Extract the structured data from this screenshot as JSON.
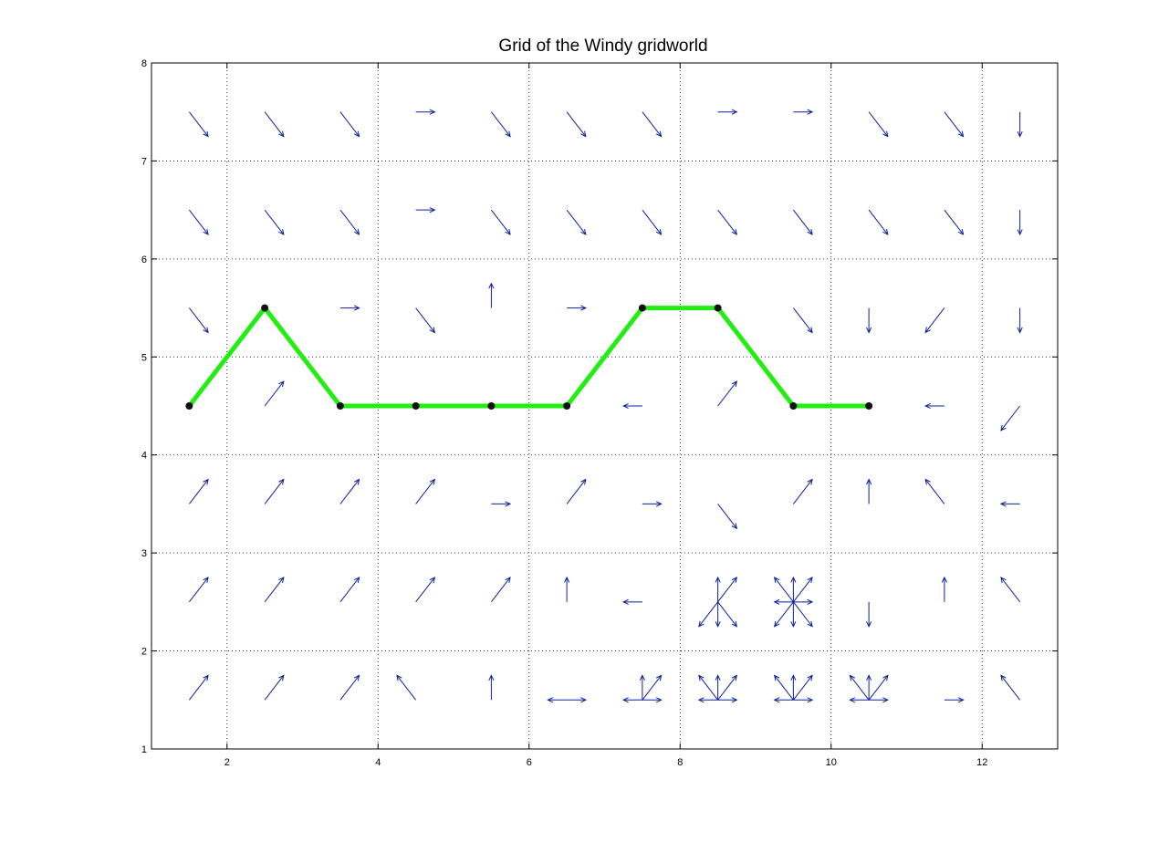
{
  "chart_data": {
    "type": "scatter",
    "title": "Grid of the Windy gridworld",
    "xlabel": "",
    "ylabel": "",
    "xlim": [
      1,
      13
    ],
    "ylim": [
      1,
      8
    ],
    "xticks": [
      2,
      4,
      6,
      8,
      10,
      12
    ],
    "yticks": [
      1,
      2,
      3,
      4,
      5,
      6,
      7,
      8
    ],
    "grid": true,
    "colors": {
      "arrows": "#0b1f9c",
      "path": "#22ee11",
      "points": "#111111"
    },
    "arrows": [
      {
        "x": 1.5,
        "y": 7.5,
        "dir": [
          "SE"
        ]
      },
      {
        "x": 2.5,
        "y": 7.5,
        "dir": [
          "SE"
        ]
      },
      {
        "x": 3.5,
        "y": 7.5,
        "dir": [
          "SE"
        ]
      },
      {
        "x": 4.5,
        "y": 7.5,
        "dir": [
          "E"
        ]
      },
      {
        "x": 5.5,
        "y": 7.5,
        "dir": [
          "SE"
        ]
      },
      {
        "x": 6.5,
        "y": 7.5,
        "dir": [
          "SE"
        ]
      },
      {
        "x": 7.5,
        "y": 7.5,
        "dir": [
          "SE"
        ]
      },
      {
        "x": 8.5,
        "y": 7.5,
        "dir": [
          "E"
        ]
      },
      {
        "x": 9.5,
        "y": 7.5,
        "dir": [
          "E"
        ]
      },
      {
        "x": 10.5,
        "y": 7.5,
        "dir": [
          "SE"
        ]
      },
      {
        "x": 11.5,
        "y": 7.5,
        "dir": [
          "SE"
        ]
      },
      {
        "x": 12.5,
        "y": 7.5,
        "dir": [
          "S"
        ]
      },
      {
        "x": 1.5,
        "y": 6.5,
        "dir": [
          "SE"
        ]
      },
      {
        "x": 2.5,
        "y": 6.5,
        "dir": [
          "SE"
        ]
      },
      {
        "x": 3.5,
        "y": 6.5,
        "dir": [
          "SE"
        ]
      },
      {
        "x": 4.5,
        "y": 6.5,
        "dir": [
          "E"
        ]
      },
      {
        "x": 5.5,
        "y": 6.5,
        "dir": [
          "SE"
        ]
      },
      {
        "x": 6.5,
        "y": 6.5,
        "dir": [
          "SE"
        ]
      },
      {
        "x": 7.5,
        "y": 6.5,
        "dir": [
          "SE"
        ]
      },
      {
        "x": 8.5,
        "y": 6.5,
        "dir": [
          "SE"
        ]
      },
      {
        "x": 9.5,
        "y": 6.5,
        "dir": [
          "SE"
        ]
      },
      {
        "x": 10.5,
        "y": 6.5,
        "dir": [
          "SE"
        ]
      },
      {
        "x": 11.5,
        "y": 6.5,
        "dir": [
          "SE"
        ]
      },
      {
        "x": 12.5,
        "y": 6.5,
        "dir": [
          "S"
        ]
      },
      {
        "x": 1.5,
        "y": 5.5,
        "dir": [
          "SE"
        ]
      },
      {
        "x": 3.5,
        "y": 5.5,
        "dir": [
          "E"
        ]
      },
      {
        "x": 4.5,
        "y": 5.5,
        "dir": [
          "SE"
        ]
      },
      {
        "x": 5.5,
        "y": 5.5,
        "dir": [
          "N"
        ]
      },
      {
        "x": 6.5,
        "y": 5.5,
        "dir": [
          "E"
        ]
      },
      {
        "x": 9.5,
        "y": 5.5,
        "dir": [
          "SE"
        ]
      },
      {
        "x": 10.5,
        "y": 5.5,
        "dir": [
          "S"
        ]
      },
      {
        "x": 11.5,
        "y": 5.5,
        "dir": [
          "SW"
        ]
      },
      {
        "x": 12.5,
        "y": 5.5,
        "dir": [
          "S"
        ]
      },
      {
        "x": 2.5,
        "y": 4.5,
        "dir": [
          "NE"
        ]
      },
      {
        "x": 7.5,
        "y": 4.5,
        "dir": [
          "W"
        ]
      },
      {
        "x": 8.5,
        "y": 4.5,
        "dir": [
          "NE"
        ]
      },
      {
        "x": 11.5,
        "y": 4.5,
        "dir": [
          "W"
        ]
      },
      {
        "x": 12.5,
        "y": 4.5,
        "dir": [
          "SW"
        ]
      },
      {
        "x": 1.5,
        "y": 3.5,
        "dir": [
          "NE"
        ]
      },
      {
        "x": 2.5,
        "y": 3.5,
        "dir": [
          "NE"
        ]
      },
      {
        "x": 3.5,
        "y": 3.5,
        "dir": [
          "NE"
        ]
      },
      {
        "x": 4.5,
        "y": 3.5,
        "dir": [
          "NE"
        ]
      },
      {
        "x": 5.5,
        "y": 3.5,
        "dir": [
          "E"
        ]
      },
      {
        "x": 6.5,
        "y": 3.5,
        "dir": [
          "NE"
        ]
      },
      {
        "x": 7.5,
        "y": 3.5,
        "dir": [
          "E"
        ]
      },
      {
        "x": 8.5,
        "y": 3.5,
        "dir": [
          "SE"
        ]
      },
      {
        "x": 9.5,
        "y": 3.5,
        "dir": [
          "NE"
        ]
      },
      {
        "x": 10.5,
        "y": 3.5,
        "dir": [
          "N"
        ]
      },
      {
        "x": 11.5,
        "y": 3.5,
        "dir": [
          "NW"
        ]
      },
      {
        "x": 12.5,
        "y": 3.5,
        "dir": [
          "W"
        ]
      },
      {
        "x": 1.5,
        "y": 2.5,
        "dir": [
          "NE"
        ]
      },
      {
        "x": 2.5,
        "y": 2.5,
        "dir": [
          "NE"
        ]
      },
      {
        "x": 3.5,
        "y": 2.5,
        "dir": [
          "NE"
        ]
      },
      {
        "x": 4.5,
        "y": 2.5,
        "dir": [
          "NE"
        ]
      },
      {
        "x": 5.5,
        "y": 2.5,
        "dir": [
          "NE"
        ]
      },
      {
        "x": 6.5,
        "y": 2.5,
        "dir": [
          "N"
        ]
      },
      {
        "x": 7.5,
        "y": 2.5,
        "dir": [
          "W"
        ]
      },
      {
        "x": 8.5,
        "y": 2.5,
        "dir": [
          "N",
          "NE",
          "S",
          "SW",
          "SE"
        ]
      },
      {
        "x": 9.5,
        "y": 2.5,
        "dir": [
          "N",
          "NE",
          "E",
          "SE",
          "S",
          "SW",
          "W",
          "NW"
        ]
      },
      {
        "x": 10.5,
        "y": 2.5,
        "dir": [
          "S"
        ]
      },
      {
        "x": 11.5,
        "y": 2.5,
        "dir": [
          "N"
        ]
      },
      {
        "x": 12.5,
        "y": 2.5,
        "dir": [
          "NW"
        ]
      },
      {
        "x": 1.5,
        "y": 1.5,
        "dir": [
          "NE"
        ]
      },
      {
        "x": 2.5,
        "y": 1.5,
        "dir": [
          "NE"
        ]
      },
      {
        "x": 3.5,
        "y": 1.5,
        "dir": [
          "NE"
        ]
      },
      {
        "x": 4.5,
        "y": 1.5,
        "dir": [
          "NW"
        ]
      },
      {
        "x": 5.5,
        "y": 1.5,
        "dir": [
          "N"
        ]
      },
      {
        "x": 6.5,
        "y": 1.5,
        "dir": [
          "E",
          "W"
        ]
      },
      {
        "x": 7.5,
        "y": 1.5,
        "dir": [
          "E",
          "W",
          "N",
          "NE"
        ]
      },
      {
        "x": 8.5,
        "y": 1.5,
        "dir": [
          "E",
          "W",
          "N",
          "NE",
          "NW"
        ]
      },
      {
        "x": 9.5,
        "y": 1.5,
        "dir": [
          "E",
          "W",
          "N",
          "NE",
          "NW"
        ]
      },
      {
        "x": 10.5,
        "y": 1.5,
        "dir": [
          "E",
          "W",
          "N",
          "NE",
          "NW"
        ]
      },
      {
        "x": 11.5,
        "y": 1.5,
        "dir": [
          "E"
        ]
      },
      {
        "x": 12.5,
        "y": 1.5,
        "dir": [
          "NW"
        ]
      }
    ],
    "path": {
      "x": [
        1.5,
        2.5,
        3.5,
        4.5,
        5.5,
        6.5,
        7.5,
        8.5,
        9.5,
        10.5
      ],
      "y": [
        4.5,
        5.5,
        4.5,
        4.5,
        4.5,
        4.5,
        5.5,
        5.5,
        4.5,
        4.5
      ]
    }
  }
}
